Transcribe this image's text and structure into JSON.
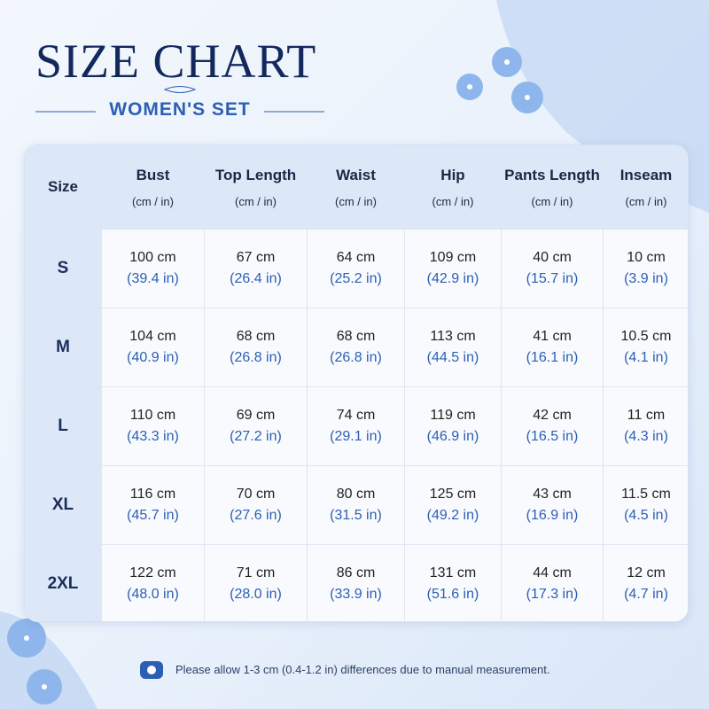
{
  "header": {
    "title": "SIZE CHART",
    "subtitle": "WOMEN'S SET"
  },
  "table": {
    "columns": [
      {
        "name": "Size"
      },
      {
        "name": "Bust",
        "unit": "(cm / in)"
      },
      {
        "name": "Top Length",
        "unit": "(cm / in)"
      },
      {
        "name": "Waist",
        "unit": "(cm / in)"
      },
      {
        "name": "Hip",
        "unit": "(cm / in)"
      },
      {
        "name": "Pants Length",
        "unit": "(cm / in)"
      },
      {
        "name": "Inseam",
        "unit": "(cm / in)"
      }
    ],
    "rows": [
      {
        "size": "S",
        "cells": [
          [
            "100 cm",
            "(39.4 in)"
          ],
          [
            "67 cm",
            "(26.4 in)"
          ],
          [
            "64 cm",
            "(25.2 in)"
          ],
          [
            "109 cm",
            "(42.9 in)"
          ],
          [
            "40 cm",
            "(15.7 in)"
          ],
          [
            "10 cm",
            "(3.9 in)"
          ]
        ]
      },
      {
        "size": "M",
        "cells": [
          [
            "104 cm",
            "(40.9 in)"
          ],
          [
            "68 cm",
            "(26.8 in)"
          ],
          [
            "68 cm",
            "(26.8 in)"
          ],
          [
            "113 cm",
            "(44.5 in)"
          ],
          [
            "41 cm",
            "(16.1 in)"
          ],
          [
            "10.5 cm",
            "(4.1 in)"
          ]
        ]
      },
      {
        "size": "L",
        "cells": [
          [
            "110 cm",
            "(43.3 in)"
          ],
          [
            "69 cm",
            "(27.2 in)"
          ],
          [
            "74 cm",
            "(29.1 in)"
          ],
          [
            "119 cm",
            "(46.9 in)"
          ],
          [
            "42 cm",
            "(16.5 in)"
          ],
          [
            "11 cm",
            "(4.3 in)"
          ]
        ]
      },
      {
        "size": "XL",
        "cells": [
          [
            "116 cm",
            "(45.7 in)"
          ],
          [
            "70 cm",
            "(27.6 in)"
          ],
          [
            "80 cm",
            "(31.5 in)"
          ],
          [
            "125 cm",
            "(49.2 in)"
          ],
          [
            "43 cm",
            "(16.9 in)"
          ],
          [
            "11.5 cm",
            "(4.5 in)"
          ]
        ]
      },
      {
        "size": "2XL",
        "cells": [
          [
            "122 cm",
            "(48.0 in)"
          ],
          [
            "71 cm",
            "(28.0 in)"
          ],
          [
            "86 cm",
            "(33.9 in)"
          ],
          [
            "131 cm",
            "(51.6 in)"
          ],
          [
            "44 cm",
            "(17.3 in)"
          ],
          [
            "12 cm",
            "(4.7 in)"
          ]
        ]
      }
    ]
  },
  "footer": {
    "note": "Please allow 1-3 cm (0.4-1.2 in) differences due to manual measurement."
  }
}
